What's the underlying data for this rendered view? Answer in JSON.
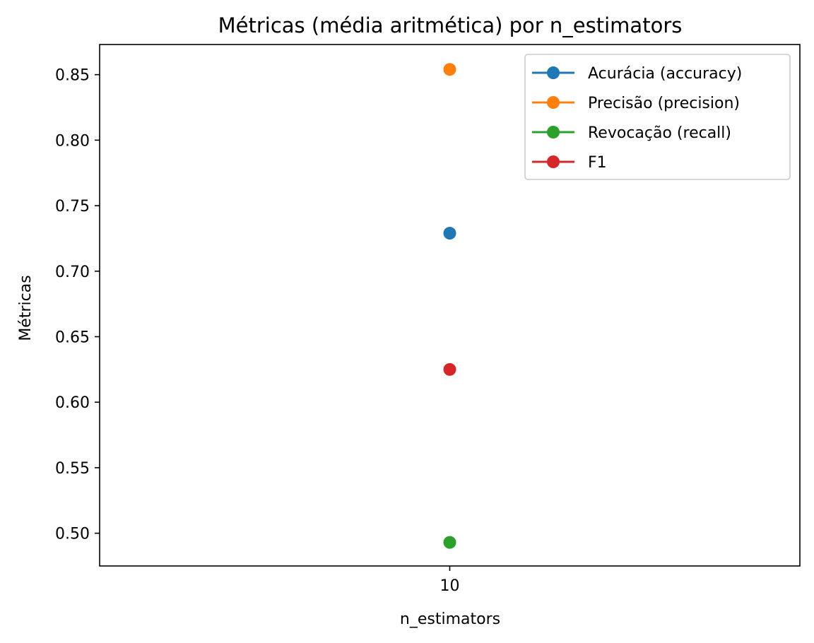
{
  "chart_data": {
    "type": "scatter",
    "title": "Métricas (média aritmética) por n_estimators",
    "xlabel": "n_estimators",
    "ylabel": "Métricas",
    "x_categories": [
      "10"
    ],
    "ylim": [
      0.475,
      0.873
    ],
    "y_ticks": [
      0.5,
      0.55,
      0.6,
      0.65,
      0.7,
      0.75,
      0.8,
      0.85
    ],
    "y_tick_labels": [
      "0.50",
      "0.55",
      "0.60",
      "0.65",
      "0.70",
      "0.75",
      "0.80",
      "0.85"
    ],
    "grid": false,
    "legend_position": "top-right",
    "series": [
      {
        "name": "Acurácia (accuracy)",
        "color": "#1f77b4",
        "x": [
          "10"
        ],
        "values": [
          0.729
        ]
      },
      {
        "name": "Precisão (precision)",
        "color": "#ff7f0e",
        "x": [
          "10"
        ],
        "values": [
          0.854
        ]
      },
      {
        "name": "Revocação (recall)",
        "color": "#2ca02c",
        "x": [
          "10"
        ],
        "values": [
          0.493
        ]
      },
      {
        "name": "F1",
        "color": "#d62728",
        "x": [
          "10"
        ],
        "values": [
          0.625
        ]
      }
    ]
  }
}
